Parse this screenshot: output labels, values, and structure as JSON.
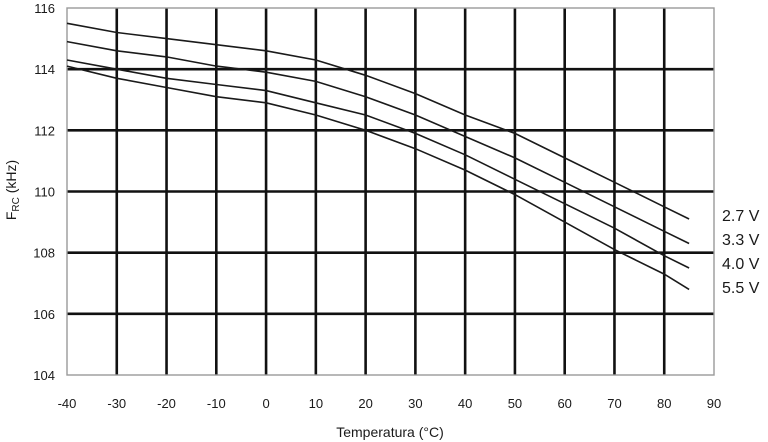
{
  "chart_data": {
    "type": "line",
    "xlabel": "Temperatura (°C)",
    "ylabel_main": "F",
    "ylabel_sub": "RC",
    "ylabel_unit": " (kHz)",
    "xlim": [
      -40,
      90
    ],
    "ylim": [
      104,
      116
    ],
    "x_ticks": [
      -40,
      -30,
      -20,
      -10,
      0,
      10,
      20,
      30,
      40,
      50,
      60,
      70,
      80,
      90
    ],
    "y_ticks": [
      104,
      106,
      108,
      110,
      112,
      114,
      116
    ],
    "grid": true,
    "series": [
      {
        "name": "2.7 V",
        "points": [
          [
            -40,
            115.5
          ],
          [
            -30,
            115.2
          ],
          [
            -20,
            115.0
          ],
          [
            -10,
            114.8
          ],
          [
            0,
            114.6
          ],
          [
            10,
            114.3
          ],
          [
            20,
            113.8
          ],
          [
            30,
            113.2
          ],
          [
            40,
            112.5
          ],
          [
            50,
            111.9
          ],
          [
            60,
            111.1
          ],
          [
            70,
            110.3
          ],
          [
            80,
            109.5
          ],
          [
            85,
            109.1
          ]
        ]
      },
      {
        "name": "3.3 V",
        "points": [
          [
            -40,
            114.9
          ],
          [
            -30,
            114.6
          ],
          [
            -20,
            114.4
          ],
          [
            -10,
            114.1
          ],
          [
            0,
            113.9
          ],
          [
            10,
            113.6
          ],
          [
            20,
            113.1
          ],
          [
            30,
            112.5
          ],
          [
            40,
            111.8
          ],
          [
            50,
            111.1
          ],
          [
            60,
            110.3
          ],
          [
            70,
            109.5
          ],
          [
            80,
            108.7
          ],
          [
            85,
            108.3
          ]
        ]
      },
      {
        "name": "4.0 V",
        "points": [
          [
            -40,
            114.3
          ],
          [
            -30,
            114.0
          ],
          [
            -20,
            113.7
          ],
          [
            -10,
            113.5
          ],
          [
            0,
            113.3
          ],
          [
            10,
            112.9
          ],
          [
            20,
            112.5
          ],
          [
            30,
            111.9
          ],
          [
            40,
            111.2
          ],
          [
            50,
            110.4
          ],
          [
            60,
            109.6
          ],
          [
            70,
            108.8
          ],
          [
            80,
            107.9
          ],
          [
            85,
            107.5
          ]
        ]
      },
      {
        "name": "5.5 V",
        "points": [
          [
            -40,
            114.1
          ],
          [
            -30,
            113.7
          ],
          [
            -20,
            113.4
          ],
          [
            -10,
            113.1
          ],
          [
            0,
            112.9
          ],
          [
            10,
            112.5
          ],
          [
            20,
            112.0
          ],
          [
            30,
            111.4
          ],
          [
            40,
            110.7
          ],
          [
            50,
            109.9
          ],
          [
            60,
            109.0
          ],
          [
            70,
            108.1
          ],
          [
            80,
            107.3
          ],
          [
            85,
            106.8
          ]
        ]
      }
    ]
  }
}
